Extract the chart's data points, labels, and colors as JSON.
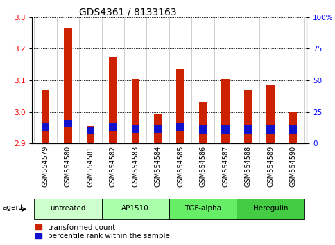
{
  "title": "GDS4361 / 8133163",
  "samples": [
    "GSM554579",
    "GSM554580",
    "GSM554581",
    "GSM554582",
    "GSM554583",
    "GSM554584",
    "GSM554585",
    "GSM554586",
    "GSM554587",
    "GSM554588",
    "GSM554589",
    "GSM554590"
  ],
  "transformed_counts": [
    3.07,
    3.265,
    2.955,
    3.175,
    3.105,
    2.995,
    3.135,
    3.03,
    3.105,
    3.07,
    3.085,
    3.0
  ],
  "percentile_tops": [
    2.965,
    2.975,
    2.95,
    2.963,
    2.958,
    2.958,
    2.963,
    2.957,
    2.957,
    2.957,
    2.957,
    2.957
  ],
  "percentile_bottoms": [
    2.94,
    2.95,
    2.928,
    2.938,
    2.933,
    2.933,
    2.938,
    2.932,
    2.932,
    2.932,
    2.932,
    2.932
  ],
  "base": 2.9,
  "ylim": [
    2.9,
    3.3
  ],
  "yticks_left": [
    2.9,
    3.0,
    3.1,
    3.2,
    3.3
  ],
  "yticks_right": [
    0,
    25,
    50,
    75,
    100
  ],
  "agent_groups": [
    {
      "label": "untreated",
      "start": 0,
      "end": 3,
      "color": "#ccffcc"
    },
    {
      "label": "AP1510",
      "start": 3,
      "end": 6,
      "color": "#aaffaa"
    },
    {
      "label": "TGF-alpha",
      "start": 6,
      "end": 9,
      "color": "#66ee66"
    },
    {
      "label": "Heregulin",
      "start": 9,
      "end": 12,
      "color": "#44cc44"
    }
  ],
  "bar_color_red": "#cc2200",
  "bar_color_blue": "#1111cc",
  "bar_width": 0.35,
  "grid_color": "black",
  "background_plot": "#ffffff",
  "background_ticklabel": "#cccccc",
  "title_fontsize": 10,
  "tick_fontsize": 7,
  "legend_fontsize": 7.5
}
